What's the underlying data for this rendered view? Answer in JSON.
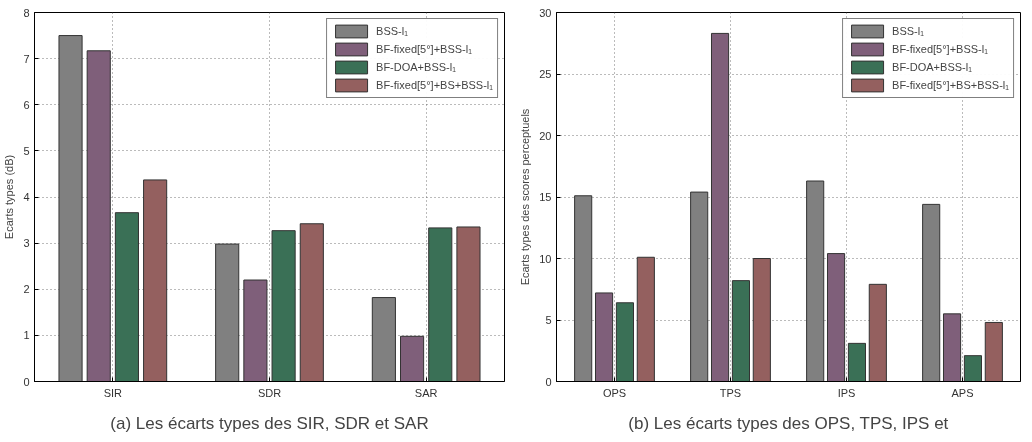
{
  "chart_data": [
    {
      "type": "bar",
      "categories": [
        "SIR",
        "SDR",
        "SAR"
      ],
      "ylabel": "Ecarts types (dB)",
      "ylim": [
        0,
        8
      ],
      "yticks": [
        0,
        1,
        2,
        3,
        4,
        5,
        6,
        7,
        8
      ],
      "grid": true,
      "legend": "top right",
      "series": [
        {
          "name": "BSS-l₁",
          "color": "#808080",
          "values": [
            7.5,
            2.98,
            1.82
          ]
        },
        {
          "name": "BF-fixed[5°]+BSS-l₁",
          "color": "#7f5f7a",
          "values": [
            7.17,
            2.2,
            0.98
          ]
        },
        {
          "name": "BF-DOA+BSS-l₁",
          "color": "#3a7056",
          "values": [
            3.66,
            3.27,
            3.33
          ]
        },
        {
          "name": "BF-fixed[5°]+BS+BSS-l₁",
          "color": "#94605f",
          "values": [
            4.37,
            3.42,
            3.35
          ]
        }
      ],
      "annotations": [
        "(a) Les écarts types des SIR, SDR et SAR"
      ]
    },
    {
      "type": "bar",
      "categories": [
        "OPS",
        "TPS",
        "IPS",
        "APS"
      ],
      "ylabel": "Ecarts types des scores perceptuels",
      "ylim": [
        0,
        30
      ],
      "yticks": [
        0,
        5,
        10,
        15,
        20,
        25,
        30
      ],
      "grid": true,
      "legend": "top right",
      "series": [
        {
          "name": "BSS-l₁",
          "color": "#808080",
          "values": [
            15.1,
            15.4,
            16.3,
            14.4
          ]
        },
        {
          "name": "BF-fixed[5°]+BSS-l₁",
          "color": "#7f5f7a",
          "values": [
            7.2,
            28.3,
            10.4,
            5.5
          ]
        },
        {
          "name": "BF-DOA+BSS-l₁",
          "color": "#3a7056",
          "values": [
            6.4,
            8.2,
            3.1,
            2.1
          ]
        },
        {
          "name": "BF-fixed[5°]+BS+BSS-l₁",
          "color": "#94605f",
          "values": [
            10.1,
            10.0,
            7.9,
            4.8
          ]
        }
      ],
      "annotations": [
        "(b) Les écarts types des OPS, TPS, IPS et"
      ]
    }
  ]
}
